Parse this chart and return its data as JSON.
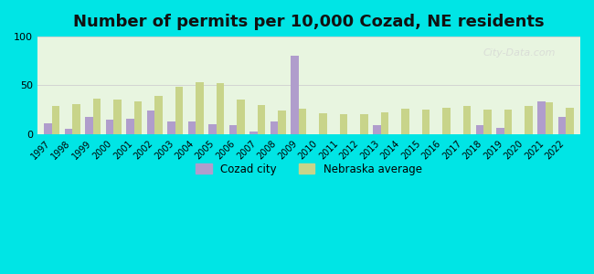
{
  "title": "Number of permits per 10,000 Cozad, NE residents",
  "years": [
    1997,
    1998,
    1999,
    2000,
    2001,
    2002,
    2003,
    2004,
    2005,
    2006,
    2007,
    2008,
    2009,
    2010,
    2011,
    2012,
    2013,
    2014,
    2015,
    2016,
    2017,
    2018,
    2019,
    2020,
    2021,
    2022
  ],
  "cozad": [
    11,
    5,
    18,
    15,
    16,
    24,
    13,
    13,
    10,
    9,
    3,
    13,
    80,
    0,
    0,
    0,
    9,
    0,
    0,
    0,
    0,
    9,
    6,
    0,
    34,
    18
  ],
  "nebraska": [
    29,
    31,
    36,
    35,
    34,
    39,
    49,
    53,
    52,
    35,
    30,
    24,
    26,
    21,
    20,
    20,
    22,
    26,
    25,
    27,
    29,
    25,
    25,
    29,
    33,
    27
  ],
  "cozad_color": "#b09dcc",
  "nebraska_color": "#c8d48a",
  "background_color_top": "#e8f5e0",
  "background_color_bottom": "#f5ffe8",
  "outer_background": "#00e5e5",
  "ylim": [
    0,
    100
  ],
  "yticks": [
    0,
    50,
    100
  ],
  "legend_cozad": "Cozad city",
  "legend_nebraska": "Nebraska average",
  "title_fontsize": 13,
  "watermark": "City-Data.com"
}
